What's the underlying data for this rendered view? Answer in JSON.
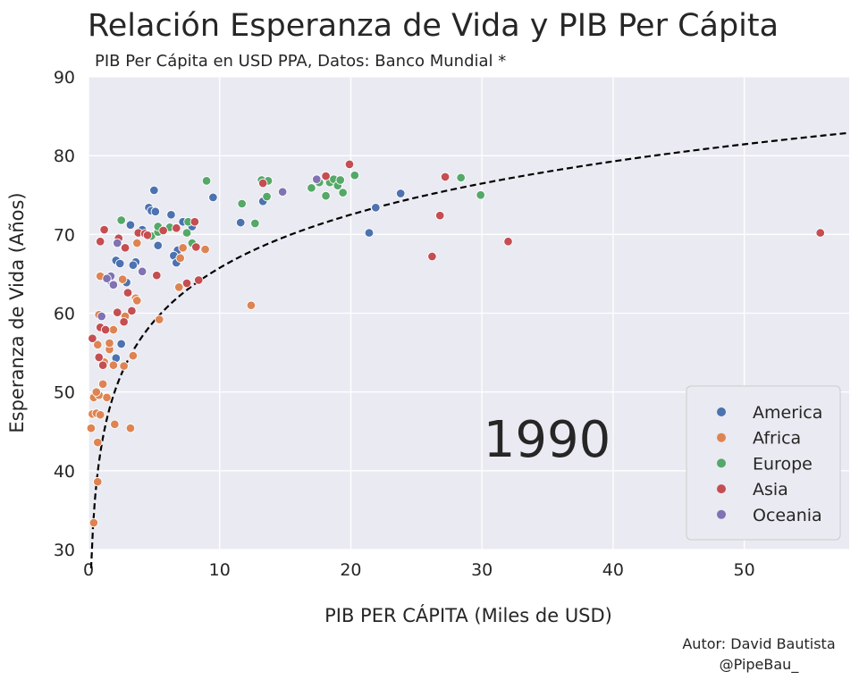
{
  "chart_data": {
    "type": "scatter",
    "title": "Relación Esperanza de Vida y PIB Per Cápita",
    "subtitle": "PIB Per Cápita en USD PPA, Datos: Banco Mundial *",
    "xlabel": "PIB PER CÁPITA (Miles de USD)",
    "ylabel": "Esperanza de Vida (Años)",
    "xlim": [
      0,
      58
    ],
    "ylim": [
      30,
      90
    ],
    "xticks": [
      0,
      10,
      20,
      30,
      40,
      50
    ],
    "yticks": [
      30,
      40,
      50,
      60,
      70,
      80,
      90
    ],
    "grid": true,
    "year_label": "1990",
    "legend_position": "lower-right",
    "trend_line": {
      "style": "dashed",
      "color": "#000000",
      "model": "logarithmic",
      "a": 43.3,
      "b": 9.75
    },
    "series": [
      {
        "name": "America",
        "color": "#4c72b0",
        "points": [
          [
            4.6,
            73.4
          ],
          [
            5.0,
            75.6
          ],
          [
            9.5,
            74.7
          ],
          [
            3.2,
            71.2
          ],
          [
            4.1,
            70.6
          ],
          [
            4.8,
            73.0
          ],
          [
            5.1,
            72.9
          ],
          [
            6.3,
            72.5
          ],
          [
            7.2,
            71.6
          ],
          [
            7.9,
            71.0
          ],
          [
            6.8,
            68.0
          ],
          [
            6.5,
            67.3
          ],
          [
            6.7,
            66.4
          ],
          [
            5.3,
            68.6
          ],
          [
            2.1,
            66.7
          ],
          [
            2.4,
            66.3
          ],
          [
            3.6,
            66.5
          ],
          [
            3.4,
            66.1
          ],
          [
            1.6,
            64.2
          ],
          [
            2.9,
            63.9
          ],
          [
            2.5,
            56.1
          ],
          [
            2.1,
            54.3
          ],
          [
            11.6,
            71.5
          ],
          [
            13.3,
            74.2
          ],
          [
            21.4,
            70.2
          ],
          [
            21.9,
            73.4
          ],
          [
            23.8,
            75.2
          ]
        ]
      },
      {
        "name": "Africa",
        "color": "#dd8452",
        "points": [
          [
            0.4,
            33.4
          ],
          [
            0.7,
            38.6
          ],
          [
            0.7,
            43.6
          ],
          [
            3.2,
            45.4
          ],
          [
            2.0,
            45.9
          ],
          [
            0.2,
            45.4
          ],
          [
            0.3,
            47.2
          ],
          [
            0.6,
            47.3
          ],
          [
            0.9,
            47.1
          ],
          [
            0.4,
            49.3
          ],
          [
            0.8,
            49.6
          ],
          [
            1.4,
            49.3
          ],
          [
            0.6,
            50.0
          ],
          [
            1.1,
            51.0
          ],
          [
            2.7,
            53.3
          ],
          [
            1.9,
            53.4
          ],
          [
            1.2,
            53.8
          ],
          [
            1.6,
            55.4
          ],
          [
            3.4,
            54.6
          ],
          [
            1.6,
            56.2
          ],
          [
            0.7,
            56.0
          ],
          [
            1.9,
            57.9
          ],
          [
            0.8,
            59.8
          ],
          [
            2.8,
            59.6
          ],
          [
            5.4,
            59.2
          ],
          [
            3.6,
            61.9
          ],
          [
            3.7,
            61.6
          ],
          [
            6.9,
            63.3
          ],
          [
            8.9,
            68.1
          ],
          [
            7.2,
            68.3
          ],
          [
            7.0,
            67.0
          ],
          [
            0.9,
            64.7
          ],
          [
            12.4,
            61.0
          ],
          [
            3.7,
            68.9
          ],
          [
            2.6,
            64.3
          ]
        ]
      },
      {
        "name": "Europe",
        "color": "#55a868",
        "points": [
          [
            9.0,
            76.8
          ],
          [
            2.5,
            71.8
          ],
          [
            4.8,
            69.8
          ],
          [
            5.3,
            70.3
          ],
          [
            6.2,
            70.9
          ],
          [
            7.6,
            71.6
          ],
          [
            5.3,
            71.0
          ],
          [
            7.9,
            68.9
          ],
          [
            7.5,
            70.2
          ],
          [
            11.7,
            73.9
          ],
          [
            12.7,
            71.4
          ],
          [
            13.2,
            76.9
          ],
          [
            13.7,
            76.8
          ],
          [
            13.6,
            74.8
          ],
          [
            17.0,
            75.9
          ],
          [
            17.6,
            76.6
          ],
          [
            18.1,
            74.9
          ],
          [
            18.4,
            76.6
          ],
          [
            18.7,
            77.0
          ],
          [
            19.0,
            76.2
          ],
          [
            19.2,
            76.9
          ],
          [
            19.4,
            75.3
          ],
          [
            20.3,
            77.5
          ],
          [
            28.4,
            77.2
          ],
          [
            29.9,
            75.0
          ]
        ]
      },
      {
        "name": "Asia",
        "color": "#c44e52",
        "points": [
          [
            0.3,
            56.8
          ],
          [
            0.8,
            54.4
          ],
          [
            0.9,
            58.2
          ],
          [
            1.3,
            57.9
          ],
          [
            1.1,
            53.4
          ],
          [
            3.3,
            60.3
          ],
          [
            3.0,
            62.6
          ],
          [
            2.2,
            60.1
          ],
          [
            2.7,
            58.9
          ],
          [
            0.9,
            69.1
          ],
          [
            1.2,
            70.6
          ],
          [
            2.3,
            69.5
          ],
          [
            2.8,
            68.3
          ],
          [
            3.8,
            70.2
          ],
          [
            4.3,
            70.1
          ],
          [
            4.5,
            69.9
          ],
          [
            5.7,
            70.5
          ],
          [
            5.2,
            64.8
          ],
          [
            6.7,
            70.8
          ],
          [
            7.5,
            63.8
          ],
          [
            8.4,
            64.2
          ],
          [
            8.2,
            68.4
          ],
          [
            8.1,
            71.6
          ],
          [
            13.3,
            76.5
          ],
          [
            18.1,
            77.4
          ],
          [
            19.9,
            78.9
          ],
          [
            26.2,
            67.2
          ],
          [
            26.8,
            72.4
          ],
          [
            27.2,
            77.3
          ],
          [
            32.0,
            69.1
          ],
          [
            55.8,
            70.2
          ]
        ]
      },
      {
        "name": "Oceania",
        "color": "#8172b3",
        "points": [
          [
            1.0,
            59.6
          ],
          [
            1.7,
            64.7
          ],
          [
            1.9,
            63.6
          ],
          [
            1.4,
            64.4
          ],
          [
            2.2,
            68.9
          ],
          [
            4.1,
            65.3
          ],
          [
            14.8,
            75.4
          ],
          [
            17.4,
            77.0
          ]
        ]
      }
    ]
  },
  "credits": {
    "author": "Autor: David Bautista",
    "handle": "@PipeBau_"
  }
}
